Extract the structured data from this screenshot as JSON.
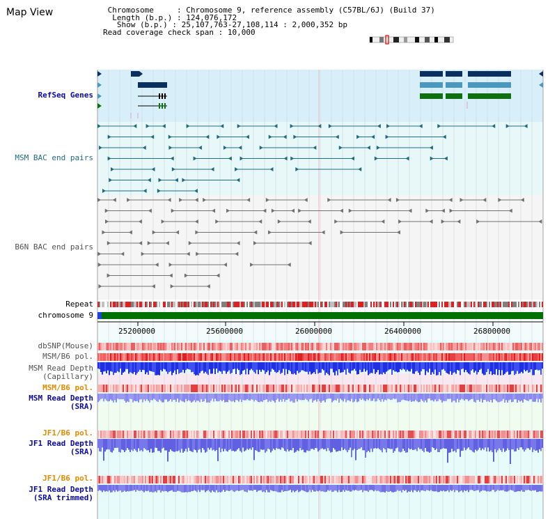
{
  "page": {
    "title": "Map View"
  },
  "info": {
    "chromosome_label": "Chromosome",
    "chromosome_value": "Chromosome 9, reference assembly (C57BL/6J) (Build 37)",
    "length_label": "Length (b.p.)",
    "length_value": "124,076,172",
    "show_label": "Show (b.p.)",
    "show_value": "25,107,763-27,108,114 : 2,000,352 bp",
    "span_label": "Read coverage check span",
    "span_value": "10,000"
  },
  "tracks": {
    "refseq": "RefSeq Genes",
    "msm_bac": "MSM BAC end pairs",
    "b6n_bac": "B6N BAC end pairs",
    "repeat": "Repeat",
    "chromosome": "chromosome 9",
    "dbsnp": "dbSNP(Mouse)",
    "msm_b6_pol_1": "MSM/B6 pol.",
    "msm_read_depth_cap_1": "MSM Read Depth",
    "msm_read_depth_cap_2": "(Capillary)",
    "msm_b6_pol_2": "MSM/B6 pol.",
    "msm_read_depth_sra_1": "MSM Read Depth",
    "msm_read_depth_sra_2": "(SRA)",
    "jf1_b6_pol_1": "JF1/B6 pol.",
    "jf1_read_depth_1": "JF1 Read Depth",
    "jf1_read_depth_2": "(SRA)",
    "jf1_b6_pol_2": "JF1/B6 pol.",
    "jf1_read_depth_trim_1": "JF1 Read Depth",
    "jf1_read_depth_trim_2": "(SRA trimmed)"
  },
  "ruler": {
    "ticks": [
      "25200000",
      "25600000",
      "26000000",
      "26400000",
      "26800000"
    ]
  },
  "colors": {
    "refseq_bg": "#d8eef8",
    "msm_bg": "#e8f8f8",
    "b6n_bg": "#f4f4f4",
    "gene_dark": "#0a3060",
    "gene_mid": "#4a98c0",
    "gene_green": "#107010",
    "msm_line": "#1e6a80",
    "b6n_line": "#707070",
    "chrom_green": "#007000"
  }
}
